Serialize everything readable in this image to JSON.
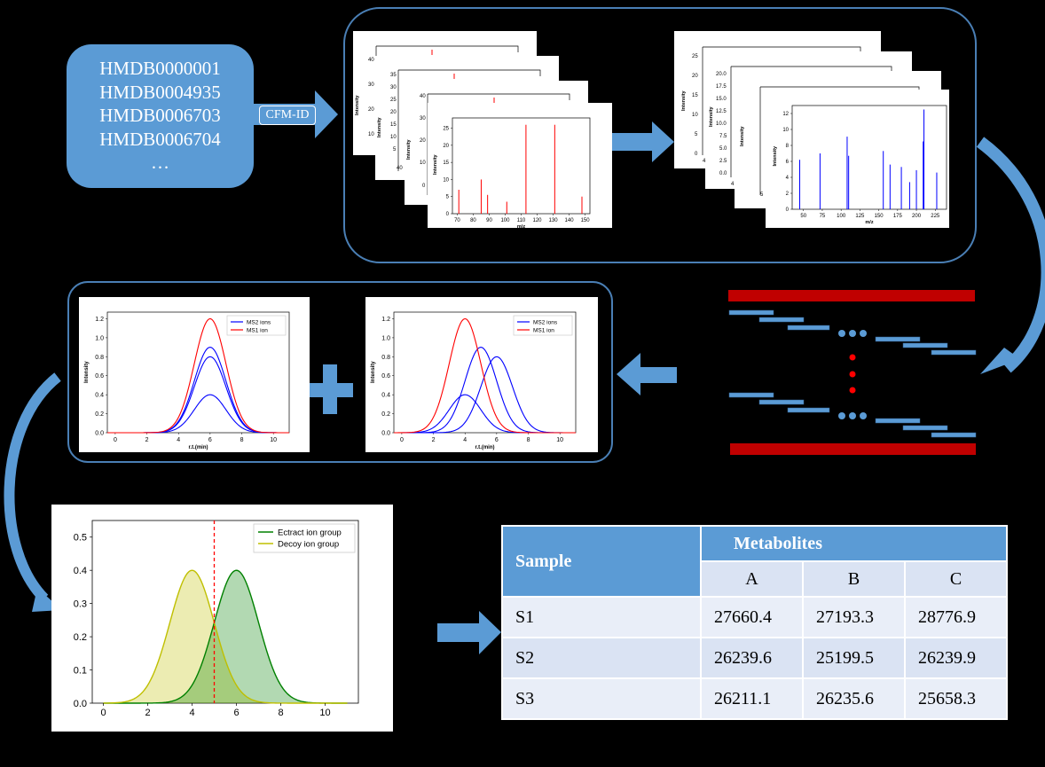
{
  "hmdb_box": {
    "ids": [
      "HMDB0000001",
      "HMDB0004935",
      "HMDB0006703",
      "HMDB0006704",
      "…"
    ],
    "tool_label": "CFM-ID"
  },
  "spectra_predicted": {
    "ylabel": "Intensity",
    "xlabel": "m/z",
    "back_ticks_1": [
      "40",
      "30",
      "20",
      "10"
    ],
    "back_ticks_2": [
      "35",
      "30",
      "25",
      "20",
      "15",
      "10",
      "5",
      "0"
    ],
    "back_ticks_3": [
      "40",
      "30",
      "20",
      "10",
      "0"
    ],
    "back_bottom_1": "40",
    "front": {
      "yticks": [
        "25",
        "20",
        "15",
        "10",
        "5",
        "0"
      ],
      "xticks": [
        "70",
        "80",
        "90",
        "100",
        "110",
        "120",
        "130",
        "140",
        "150"
      ],
      "peaks": [
        {
          "x": 71,
          "y": 7
        },
        {
          "x": 85,
          "y": 10
        },
        {
          "x": 89,
          "y": 5.5
        },
        {
          "x": 101,
          "y": 3.5
        },
        {
          "x": 113,
          "y": 26
        },
        {
          "x": 131,
          "y": 26
        },
        {
          "x": 148,
          "y": 5
        }
      ]
    }
  },
  "spectra_filtered": {
    "ylabel": "Intensity",
    "xlabel": "m/z",
    "back_ticks_1": [
      "25",
      "20",
      "15",
      "10",
      "5",
      "0"
    ],
    "back_ticks_2": [
      "20.0",
      "17.5",
      "15.0",
      "12.5",
      "10.0",
      "7.5",
      "5.0",
      "2.5",
      "0.0"
    ],
    "back_bottom_1": "4",
    "back_bottom_2": "4",
    "back_bottom_3": "5",
    "front": {
      "yticks": [
        "12",
        "10",
        "8",
        "6",
        "4",
        "2",
        "0"
      ],
      "xticks": [
        "50",
        "75",
        "100",
        "125",
        "150",
        "175",
        "200",
        "225"
      ],
      "peaks": [
        {
          "x": 45,
          "y": 6.2
        },
        {
          "x": 72,
          "y": 7
        },
        {
          "x": 108,
          "y": 9.1
        },
        {
          "x": 110,
          "y": 6.7
        },
        {
          "x": 156,
          "y": 7.3
        },
        {
          "x": 165,
          "y": 5.6
        },
        {
          "x": 180,
          "y": 5.3
        },
        {
          "x": 191,
          "y": 3.4
        },
        {
          "x": 200,
          "y": 4.9
        },
        {
          "x": 209,
          "y": 8.5
        },
        {
          "x": 210,
          "y": 12.5
        },
        {
          "x": 227,
          "y": 4.6
        }
      ]
    }
  },
  "chromatograms": {
    "xlabel": "r.t.(min)",
    "ylabel": "Intensity",
    "yticks": [
      "1.2",
      "1.0",
      "0.8",
      "0.6",
      "0.4",
      "0.2",
      "0.0"
    ],
    "xticks": [
      "0",
      "2",
      "4",
      "6",
      "8",
      "10"
    ],
    "legend": [
      "MS2 ions",
      "MS1 ion"
    ],
    "plus_sign": "+",
    "colors": {
      "ms2": "#0000ff",
      "ms1": "#ff0000"
    },
    "left_panel": {
      "ms1": {
        "center": 6,
        "height": 1.2,
        "sigma": 1
      },
      "ms2": [
        {
          "center": 6,
          "height": 0.9,
          "sigma": 1
        },
        {
          "center": 6,
          "height": 0.8,
          "sigma": 1
        },
        {
          "center": 6,
          "height": 0.4,
          "sigma": 1
        }
      ]
    },
    "right_panel": {
      "ms1": {
        "center": 4,
        "height": 1.2,
        "sigma": 1
      },
      "ms2": [
        {
          "center": 5,
          "height": 0.9,
          "sigma": 1
        },
        {
          "center": 6,
          "height": 0.8,
          "sigma": 1
        },
        {
          "center": 4,
          "height": 0.4,
          "sigma": 1
        }
      ]
    }
  },
  "chart_data": {
    "type": "area",
    "xlim": [
      0,
      11.5
    ],
    "ylim": [
      0,
      0.55
    ],
    "xticks": [
      "0",
      "2",
      "4",
      "6",
      "8",
      "10"
    ],
    "yticks": [
      "0.5",
      "0.4",
      "0.3",
      "0.2",
      "0.1",
      "0.0"
    ],
    "threshold_x": 5,
    "series": [
      {
        "name": "Ectract ion group",
        "center": 6,
        "peak": 0.4,
        "sigma": 1,
        "color": "#008000"
      },
      {
        "name": "Decoy ion group",
        "center": 4,
        "peak": 0.4,
        "sigma": 1,
        "color": "#bfbf00"
      }
    ],
    "legend_position": "top-right"
  },
  "result_table": {
    "sample_header": "Sample",
    "group_header": "Metabolites",
    "columns": [
      "A",
      "B",
      "C"
    ],
    "rows": [
      {
        "sample": "S1",
        "values": [
          "27660.4",
          "27193.3",
          "28776.9"
        ]
      },
      {
        "sample": "S2",
        "values": [
          "26239.6",
          "25199.5",
          "26239.9"
        ]
      },
      {
        "sample": "S3",
        "values": [
          "26211.1",
          "26235.6",
          "25658.3"
        ]
      }
    ]
  },
  "colors": {
    "arrow_blue": "#5b9bd5",
    "header_blue": "#5b9bd5",
    "subheader_blue": "#dae3f3",
    "row_light": "#e9eef8",
    "dark_red": "#c00000"
  }
}
